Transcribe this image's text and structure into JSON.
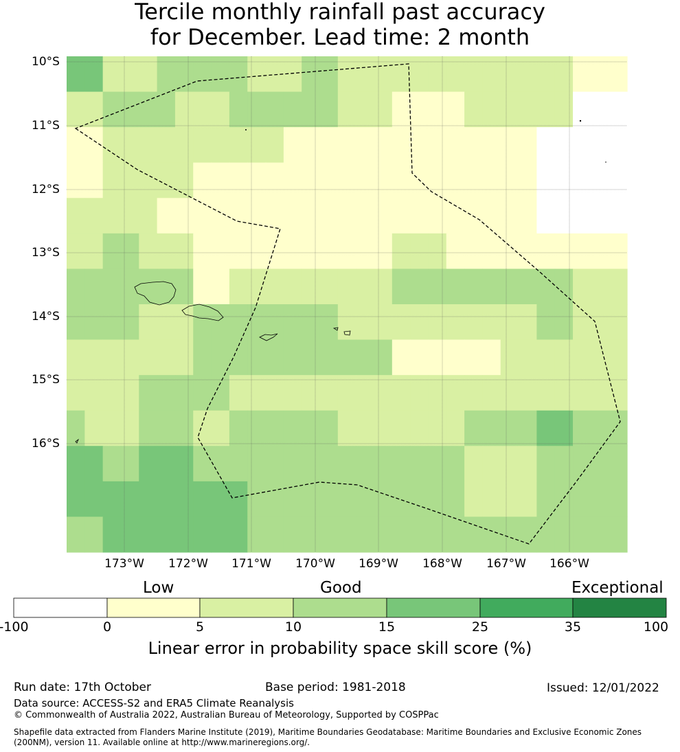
{
  "title_line1": "Tercile monthly rainfall past accuracy",
  "title_line2": "for December. Lead time: 2 month",
  "latitude_labels": [
    "10°S",
    "11°S",
    "12°S",
    "13°S",
    "14°S",
    "15°S",
    "16°S"
  ],
  "longitude_labels": [
    "173°W",
    "172°W",
    "171°W",
    "170°W",
    "169°W",
    "168°W",
    "167°W",
    "166°W"
  ],
  "colorbar": {
    "categories": [
      "Low",
      "Good",
      "Exceptional"
    ],
    "ticks": [
      "-100",
      "0",
      "5",
      "10",
      "15",
      "25",
      "35",
      "100"
    ],
    "colors": [
      "#ffffff",
      "#ffffcc",
      "#d9f0a3",
      "#addd8e",
      "#78c679",
      "#41ab5d",
      "#238443"
    ],
    "title": "Linear error in probability space skill score (%)"
  },
  "map_grid": [
    [
      4,
      4,
      2,
      2,
      2,
      3,
      3,
      3,
      3,
      3,
      2,
      2,
      2,
      3,
      3,
      2,
      2,
      2,
      2,
      2,
      2,
      2,
      2,
      2,
      2,
      2,
      2,
      2,
      1,
      1,
      1
    ],
    [
      2,
      2,
      3,
      3,
      3,
      3,
      2,
      2,
      2,
      3,
      3,
      3,
      3,
      3,
      3,
      2,
      2,
      2,
      1,
      1,
      1,
      1,
      2,
      2,
      2,
      2,
      2,
      2,
      0,
      0,
      0
    ],
    [
      1,
      1,
      2,
      2,
      2,
      2,
      2,
      2,
      2,
      2,
      2,
      2,
      1,
      1,
      1,
      1,
      1,
      1,
      1,
      1,
      1,
      1,
      1,
      1,
      1,
      1,
      0,
      0,
      0,
      0,
      0
    ],
    [
      1,
      1,
      2,
      2,
      2,
      2,
      2,
      1,
      1,
      1,
      1,
      1,
      1,
      1,
      1,
      1,
      1,
      1,
      1,
      1,
      1,
      1,
      1,
      1,
      1,
      1,
      0,
      0,
      0,
      0,
      0
    ],
    [
      2,
      2,
      2,
      2,
      2,
      1,
      1,
      1,
      1,
      1,
      1,
      1,
      1,
      1,
      1,
      1,
      1,
      1,
      1,
      1,
      1,
      1,
      1,
      1,
      1,
      1,
      0,
      0,
      0,
      0,
      0
    ],
    [
      2,
      2,
      3,
      3,
      2,
      2,
      2,
      1,
      1,
      1,
      1,
      1,
      1,
      1,
      1,
      1,
      1,
      1,
      2,
      2,
      2,
      1,
      1,
      1,
      1,
      1,
      1,
      1,
      1,
      1,
      1
    ],
    [
      3,
      3,
      3,
      3,
      3,
      3,
      3,
      1,
      1,
      2,
      2,
      2,
      2,
      2,
      2,
      2,
      2,
      2,
      3,
      3,
      3,
      3,
      3,
      3,
      3,
      3,
      3,
      3,
      2,
      2,
      2
    ],
    [
      3,
      3,
      3,
      3,
      2,
      2,
      2,
      3,
      3,
      3,
      3,
      3,
      3,
      3,
      3,
      2,
      2,
      2,
      2,
      2,
      2,
      2,
      2,
      2,
      2,
      2,
      3,
      3,
      2,
      2,
      2
    ],
    [
      2,
      2,
      2,
      2,
      2,
      2,
      2,
      3,
      3,
      3,
      3,
      3,
      3,
      3,
      3,
      3,
      3,
      3,
      1,
      1,
      1,
      1,
      1,
      1,
      2,
      2,
      2,
      2,
      2,
      2,
      2
    ],
    [
      2,
      2,
      2,
      2,
      3,
      3,
      3,
      3,
      3,
      2,
      2,
      2,
      2,
      2,
      2,
      2,
      2,
      2,
      2,
      2,
      2,
      2,
      2,
      2,
      2,
      2,
      2,
      2,
      2,
      2,
      2
    ],
    [
      3,
      2,
      2,
      2,
      3,
      3,
      3,
      2,
      2,
      3,
      3,
      3,
      3,
      3,
      3,
      2,
      2,
      2,
      2,
      2,
      2,
      2,
      3,
      3,
      3,
      3,
      4,
      4,
      3,
      3,
      3
    ],
    [
      4,
      4,
      3,
      3,
      4,
      4,
      4,
      3,
      3,
      3,
      3,
      3,
      3,
      3,
      3,
      3,
      3,
      3,
      3,
      3,
      3,
      3,
      2,
      2,
      2,
      2,
      3,
      3,
      3,
      3,
      3
    ],
    [
      4,
      4,
      4,
      4,
      4,
      4,
      4,
      4,
      4,
      4,
      3,
      3,
      3,
      3,
      3,
      3,
      3,
      3,
      3,
      3,
      3,
      3,
      2,
      2,
      2,
      2,
      3,
      3,
      3,
      3,
      3
    ],
    [
      3,
      3,
      4,
      4,
      4,
      4,
      4,
      4,
      4,
      4,
      3,
      3,
      3,
      3,
      3,
      3,
      3,
      3,
      3,
      3,
      3,
      3,
      3,
      3,
      3,
      3,
      3,
      3,
      3,
      3,
      3
    ]
  ],
  "footer": {
    "run_date": "Run date: 17th October",
    "base_period": "Base period: 1981-2018",
    "issued": "Issued: 12/01/2022",
    "data_source": "Data source: ACCESS-S2 and ERA5 Climate Reanalysis",
    "copyright": "© Commonwealth of Australia 2022, Australian Bureau of Meteorology, Supported by COSPPac",
    "shapefile_line1": "Shapefile data extracted from Flanders Marine Institute (2019), Maritime Boundaries Geodatabase: Maritime Boundaries and Exclusive Economic Zones",
    "shapefile_line2": "(200NM), version 11. Available online at http://www.marineregions.org/."
  }
}
